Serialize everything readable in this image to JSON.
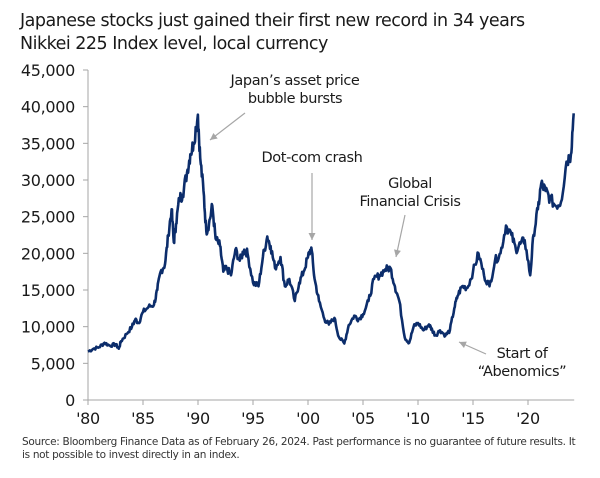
{
  "header": {
    "title": "Japanese stocks just gained their first new record in 34 years",
    "subtitle": "Nikkei 225 Index level, local currency"
  },
  "footnote": "Source: Bloomberg Finance Data as of February 26, 2024. Past performance is no guarantee of future results. It is not possible to invest directly in an index.",
  "colors": {
    "line": "#0c2d6b",
    "axis": "#a6a6a6",
    "annotation_arrow": "#a6a6a6",
    "text": "#1a1a1a"
  },
  "chart_data": {
    "type": "line",
    "title": "Japanese stocks just gained their first new record in 34 years",
    "subtitle": "Nikkei 225 Index level, local currency",
    "xlabel": "",
    "ylabel": "",
    "xlim": [
      1980,
      2024.2
    ],
    "ylim": [
      0,
      45000
    ],
    "grid": false,
    "legend": "none",
    "y_ticks": [
      0,
      5000,
      10000,
      15000,
      20000,
      25000,
      30000,
      35000,
      40000,
      45000
    ],
    "y_tick_labels": [
      "0",
      "5,000",
      "10,000",
      "15,000",
      "20,000",
      "25,000",
      "30,000",
      "35,000",
      "40,000",
      "45,000"
    ],
    "x_ticks": [
      1980,
      1985,
      1990,
      1995,
      2000,
      2005,
      2010,
      2015,
      2020
    ],
    "x_tick_labels": [
      "'80",
      "'85",
      "'90",
      "'95",
      "'00",
      "'05",
      "'10",
      "'15",
      "'20"
    ],
    "series": [
      {
        "name": "Nikkei 225",
        "x": [
          1980.0,
          1980.5,
          1981.0,
          1981.5,
          1982.0,
          1982.5,
          1982.8,
          1983.0,
          1983.5,
          1984.0,
          1984.3,
          1984.6,
          1985.0,
          1985.5,
          1986.0,
          1986.3,
          1986.6,
          1987.0,
          1987.3,
          1987.6,
          1987.8,
          1988.0,
          1988.3,
          1988.6,
          1989.0,
          1989.3,
          1989.6,
          1989.99,
          1990.2,
          1990.5,
          1990.75,
          1991.0,
          1991.3,
          1991.6,
          1992.0,
          1992.3,
          1992.6,
          1993.0,
          1993.4,
          1993.8,
          1994.2,
          1994.5,
          1995.0,
          1995.5,
          1995.9,
          1996.3,
          1996.6,
          1997.0,
          1997.5,
          1997.9,
          1998.3,
          1998.8,
          1999.2,
          1999.6,
          2000.0,
          2000.3,
          2000.6,
          2001.0,
          2001.5,
          2001.9,
          2002.4,
          2002.8,
          2003.3,
          2003.7,
          2004.2,
          2004.6,
          2005.0,
          2005.5,
          2006.0,
          2006.5,
          2007.0,
          2007.5,
          2007.9,
          2008.3,
          2008.8,
          2009.2,
          2009.6,
          2010.0,
          2010.5,
          2011.0,
          2011.3,
          2011.6,
          2012.0,
          2012.5,
          2012.9,
          2013.3,
          2013.6,
          2014.0,
          2014.5,
          2015.0,
          2015.5,
          2016.0,
          2016.5,
          2017.0,
          2017.5,
          2018.0,
          2018.5,
          2018.9,
          2019.3,
          2019.7,
          2020.2,
          2020.5,
          2020.9,
          2021.2,
          2021.6,
          2022.0,
          2022.5,
          2023.0,
          2023.5,
          2023.9,
          2024.15
        ],
        "values": [
          6600,
          7000,
          7200,
          7800,
          7400,
          7600,
          7000,
          8000,
          9000,
          10000,
          11000,
          10500,
          12000,
          12700,
          13000,
          15000,
          17500,
          18500,
          22500,
          26000,
          21500,
          24000,
          27500,
          28000,
          31000,
          33500,
          35000,
          38900,
          33000,
          28500,
          23000,
          24000,
          26500,
          22000,
          21000,
          17500,
          18000,
          17000,
          20500,
          19000,
          20500,
          20000,
          16000,
          15500,
          19500,
          22300,
          21000,
          18000,
          19500,
          15500,
          16500,
          13500,
          16000,
          17500,
          19500,
          20800,
          16500,
          13500,
          11000,
          10300,
          11200,
          8600,
          7700,
          10200,
          11500,
          11000,
          11700,
          13500,
          16500,
          17000,
          17800,
          18000,
          15500,
          13500,
          8500,
          7800,
          10000,
          10500,
          9500,
          10300,
          9500,
          8800,
          9500,
          8800,
          9500,
          12500,
          14200,
          15500,
          15300,
          17500,
          20000,
          17000,
          15500,
          19000,
          20000,
          23800,
          22500,
          20500,
          21300,
          21800,
          17000,
          22500,
          26000,
          29500,
          28500,
          27500,
          26500,
          27000,
          32500,
          33500,
          39100
        ]
      }
    ],
    "annotations": [
      {
        "text_lines": [
          "Japan’s asset price",
          "bubble bursts"
        ],
        "target_x": 1990.2,
        "target_y": 38000
      },
      {
        "text_lines": [
          "Dot-com crash"
        ],
        "target_x": 2000.1,
        "target_y": 21000
      },
      {
        "text_lines": [
          "Global",
          "Financial Crisis"
        ],
        "target_x": 2007.7,
        "target_y": 19000
      },
      {
        "text_lines": [
          "Start of",
          "“Abenomics”"
        ],
        "target_x": 2013.1,
        "target_y": 8500
      }
    ]
  }
}
